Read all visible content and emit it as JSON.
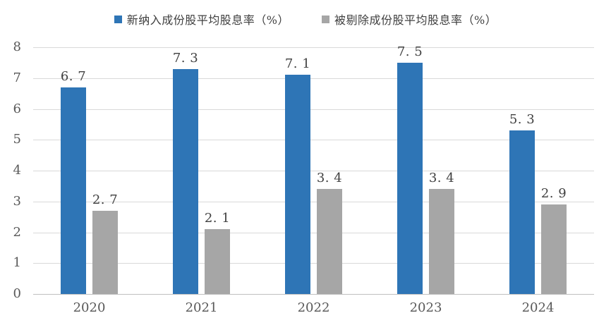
{
  "chart_data": {
    "type": "bar",
    "title": "",
    "xlabel": "",
    "ylabel": "",
    "categories": [
      "2020",
      "2021",
      "2022",
      "2023",
      "2024"
    ],
    "series": [
      {
        "name": "新纳入成份股平均股息率（%）",
        "color": "#2E75B6",
        "values": [
          6.7,
          7.3,
          7.1,
          7.5,
          5.3
        ],
        "labels": [
          "6. 7",
          "7. 3",
          "7. 1",
          "7. 5",
          "5. 3"
        ]
      },
      {
        "name": "被剔除成份股平均股息率（%）",
        "color": "#A6A6A6",
        "values": [
          2.7,
          2.1,
          3.4,
          3.4,
          2.9
        ],
        "labels": [
          "2. 7",
          "2. 1",
          "3. 4",
          "3. 4",
          "2. 9"
        ]
      }
    ],
    "ylim": [
      0,
      8
    ],
    "ytick_interval": 1,
    "yticks": [
      0,
      1,
      2,
      3,
      4,
      5,
      6,
      7,
      8
    ],
    "grid": true,
    "legend_position": "top"
  },
  "colors": {
    "series1": "#2E75B6",
    "series2": "#A6A6A6",
    "gridline": "#D9D9D9",
    "axis_line": "#BFBFBF",
    "tick_label": "#595959",
    "value_label": "#404040",
    "background": "#FFFFFF"
  }
}
